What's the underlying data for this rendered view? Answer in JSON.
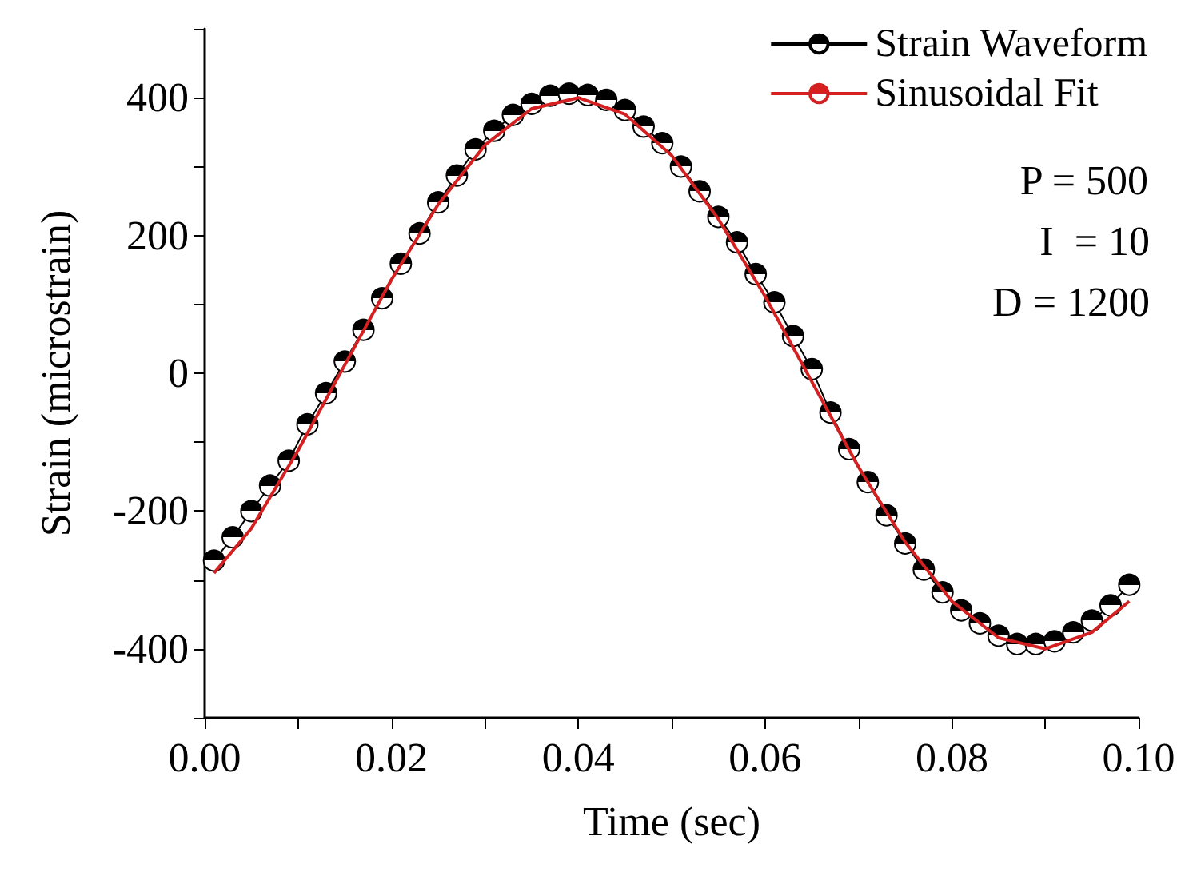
{
  "chart_data": {
    "type": "line",
    "xlabel": "Time (sec)",
    "ylabel": "Strain (microstrain)",
    "xlim": [
      0,
      0.1
    ],
    "ylim": [
      -500,
      500
    ],
    "xticks": [
      {
        "value": 0,
        "label": "0.00"
      },
      {
        "value": 0.01,
        "label": null
      },
      {
        "value": 0.02,
        "label": "0.02"
      },
      {
        "value": 0.03,
        "label": null
      },
      {
        "value": 0.04,
        "label": "0.04"
      },
      {
        "value": 0.05,
        "label": null
      },
      {
        "value": 0.06,
        "label": "0.06"
      },
      {
        "value": 0.07,
        "label": null
      },
      {
        "value": 0.08,
        "label": "0.08"
      },
      {
        "value": 0.09,
        "label": null
      },
      {
        "value": 0.1,
        "label": "0.10"
      }
    ],
    "yticks": [
      {
        "value": -500,
        "label": null
      },
      -400,
      {
        "value": -300,
        "label": null
      },
      -200,
      {
        "value": -100,
        "label": null
      },
      0,
      {
        "value": 100,
        "label": null
      },
      200,
      {
        "value": 300,
        "label": null
      },
      400,
      {
        "value": 500,
        "label": null
      }
    ],
    "grid": false,
    "legend": "top right",
    "annotations": [
      "P = 500",
      "I  = 10",
      "D = 1200"
    ],
    "series": [
      {
        "name": "Strain Waveform",
        "color": "#000000",
        "marker": "circle",
        "x": [
          0.001,
          0.003,
          0.005,
          0.007,
          0.009,
          0.011,
          0.013,
          0.015,
          0.017,
          0.019,
          0.021,
          0.023,
          0.025,
          0.027,
          0.029,
          0.031,
          0.033,
          0.035,
          0.037,
          0.039,
          0.041,
          0.043,
          0.045,
          0.047,
          0.049,
          0.051,
          0.053,
          0.055,
          0.057,
          0.059,
          0.061,
          0.063,
          0.065,
          0.067,
          0.069,
          0.071,
          0.073,
          0.075,
          0.077,
          0.079,
          0.081,
          0.083,
          0.085,
          0.087,
          0.089,
          0.091,
          0.093,
          0.095,
          0.097,
          0.099
        ],
        "values": [
          -272,
          -238,
          -200,
          -163,
          -127,
          -74,
          -29,
          17,
          63,
          109,
          159,
          203,
          248,
          287,
          325,
          352,
          375,
          391,
          403,
          406,
          404,
          397,
          382,
          358,
          334,
          300,
          264,
          227,
          190,
          144,
          103,
          54,
          6,
          -57,
          -110,
          -158,
          -206,
          -247,
          -285,
          -318,
          -344,
          -363,
          -381,
          -393,
          -393,
          -389,
          -376,
          -359,
          -337,
          -307
        ]
      },
      {
        "name": "Sinusoidal Fit",
        "color": "#d42020",
        "marker": "none",
        "x": [
          0.001,
          0.005,
          0.01,
          0.015,
          0.02,
          0.025,
          0.03,
          0.035,
          0.04,
          0.045,
          0.05,
          0.055,
          0.06,
          0.065,
          0.07,
          0.075,
          0.08,
          0.085,
          0.09,
          0.095,
          0.099
        ],
        "values": [
          -290,
          -225,
          -112,
          12,
          136,
          245,
          331,
          384,
          400,
          376,
          316,
          224,
          112,
          -12,
          -136,
          -245,
          -331,
          -384,
          -400,
          -376,
          -331
        ]
      }
    ]
  }
}
